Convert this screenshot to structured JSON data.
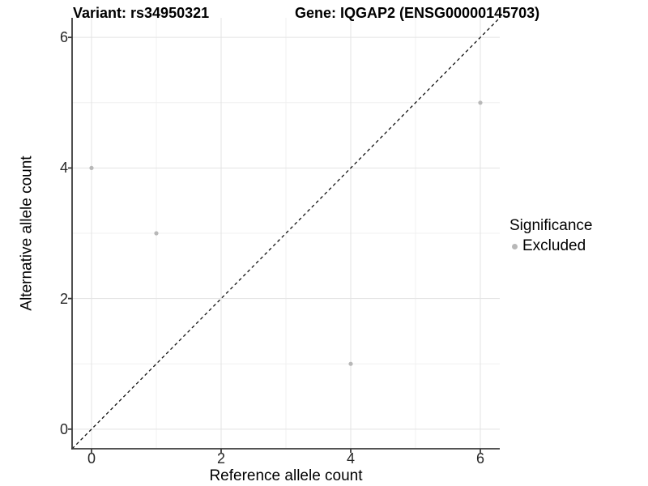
{
  "figure": {
    "title_variant": "Variant: rs34950321",
    "title_gene": "Gene: IQGAP2 (ENSG00000145703)"
  },
  "axes": {
    "x_title": "Reference allele count",
    "y_title": "Alternative allele count"
  },
  "legend": {
    "title": "Significance",
    "items": [
      {
        "label": "Excluded",
        "color": "#b8b8b8"
      }
    ]
  },
  "chart_data": {
    "type": "scatter",
    "title": "Variant: rs34950321 — Gene: IQGAP2 (ENSG00000145703)",
    "xlabel": "Reference allele count",
    "ylabel": "Alternative allele count",
    "xlim": [
      -0.3,
      6.3
    ],
    "ylim": [
      -0.3,
      6.3
    ],
    "x_ticks": [
      0,
      2,
      4,
      6
    ],
    "y_ticks": [
      0,
      2,
      4,
      6
    ],
    "x_minor": [
      1,
      3,
      5
    ],
    "y_minor": [
      1,
      3,
      5
    ],
    "grid": true,
    "legend_position": "right",
    "series": [
      {
        "name": "Excluded",
        "color": "#b8b8b8",
        "points": [
          [
            0,
            4
          ],
          [
            1,
            3
          ],
          [
            4,
            1
          ],
          [
            6,
            5
          ]
        ]
      }
    ],
    "reference_line": {
      "type": "identity",
      "slope": 1,
      "intercept": 0,
      "style": "dashed",
      "color": "#111111"
    }
  }
}
